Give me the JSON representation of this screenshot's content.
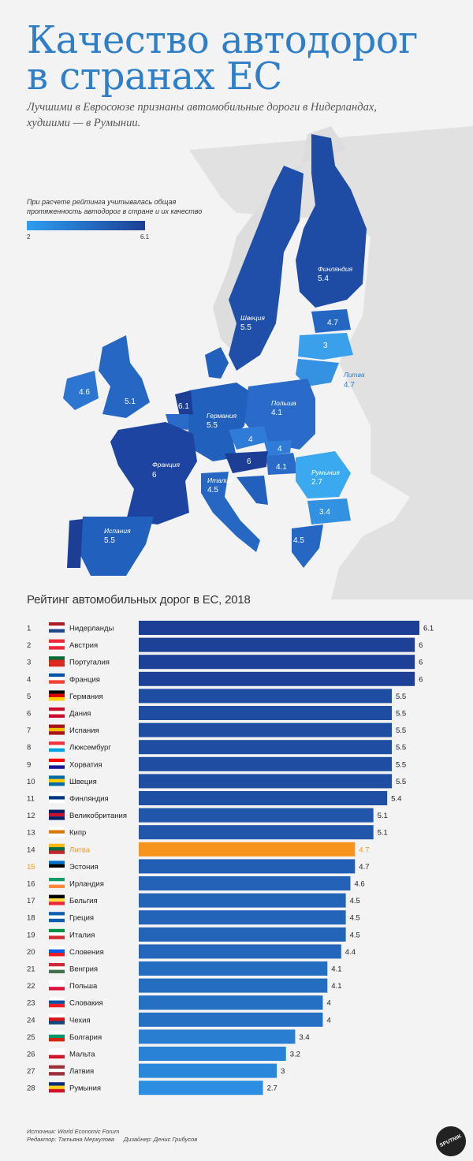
{
  "header": {
    "title_line1": "Качество автодорог",
    "title_line2": "в странах ЕС",
    "subtitle_line1": "Лучшими в Евросоюзе признаны автомобильные дороги в Нидерландах,",
    "subtitle_line2": "худшими — в Румынии."
  },
  "map": {
    "legend_note": "При расчете рейтинга учитывалась общая протяженность автодорог в стране и их качество",
    "legend_min": "2",
    "legend_max": "6.1",
    "color_low": "#2f9ef0",
    "color_high": "#1c3f95",
    "labels": [
      {
        "name": "Финляндия",
        "value": "5.4"
      },
      {
        "name": "Швеция",
        "value": "5.5"
      },
      {
        "name": "",
        "value": "4.7"
      },
      {
        "name": "",
        "value": "3"
      },
      {
        "name": "Литва",
        "value": "4.7"
      },
      {
        "name": "",
        "value": "4.6"
      },
      {
        "name": "",
        "value": "5.1"
      },
      {
        "name": "",
        "value": "6.1"
      },
      {
        "name": "Германия",
        "value": "5.5"
      },
      {
        "name": "Польша",
        "value": "4.1"
      },
      {
        "name": "",
        "value": "4"
      },
      {
        "name": "",
        "value": "4"
      },
      {
        "name": "",
        "value": "6"
      },
      {
        "name": "",
        "value": "4.1"
      },
      {
        "name": "Франция",
        "value": "6"
      },
      {
        "name": "Италия",
        "value": "4.5"
      },
      {
        "name": "Румыния",
        "value": "2.7"
      },
      {
        "name": "",
        "value": "3.4"
      },
      {
        "name": "Испания",
        "value": "5.5"
      },
      {
        "name": "",
        "value": "4.5"
      }
    ]
  },
  "chart_data": {
    "type": "bar",
    "title": "Рейтинг автомобильных дорог в ЕС, 2018",
    "highlight_color": "#f7941d",
    "categories": [
      "Нидерланды",
      "Австрия",
      "Португалия",
      "Франция",
      "Германия",
      "Дания",
      "Испания",
      "Люксембург",
      "Хорватия",
      "Швеция",
      "Финляндия",
      "Великобритания",
      "Кипр",
      "Литва",
      "Эстония",
      "Ирландия",
      "Бельгия",
      "Греция",
      "Италия",
      "Словения",
      "Венгрия",
      "Польша",
      "Словакия",
      "Чехия",
      "Болгария",
      "Мальта",
      "Латвия",
      "Румыния"
    ],
    "ranks": [
      "1",
      "2",
      "3",
      "4",
      "5",
      "6",
      "7",
      "8",
      "9",
      "10",
      "11",
      "12",
      "13",
      "14",
      "15",
      "16",
      "17",
      "18",
      "19",
      "20",
      "21",
      "22",
      "23",
      "24",
      "25",
      "26",
      "27",
      "28"
    ],
    "values": [
      6.1,
      6,
      6,
      6,
      5.5,
      5.5,
      5.5,
      5.5,
      5.5,
      5.5,
      5.4,
      5.1,
      5.1,
      4.7,
      4.7,
      4.6,
      4.5,
      4.5,
      4.5,
      4.4,
      4.1,
      4.1,
      4,
      4,
      3.4,
      3.2,
      3,
      2.7
    ],
    "value_labels": [
      "6.1",
      "6",
      "6",
      "6",
      "5.5",
      "5.5",
      "5.5",
      "5.5",
      "5.5",
      "5.5",
      "5.4",
      "5.1",
      "5.1",
      "4.7",
      "4.7",
      "4.6",
      "4.5",
      "4.5",
      "4.5",
      "4.4",
      "4.1",
      "4.1",
      "4",
      "4",
      "3.4",
      "3.2",
      "3",
      "2.7"
    ],
    "highlight_index": 13,
    "highlight_rank_index": 14,
    "ylim": [
      0,
      6.1
    ]
  },
  "footer": {
    "source": "Источник: World Economic Forum",
    "editor": "Редактор: Татьяна Меркулова",
    "designer": "Дизайнер: Денис Грибусов",
    "logo": "SPUTNIK"
  }
}
